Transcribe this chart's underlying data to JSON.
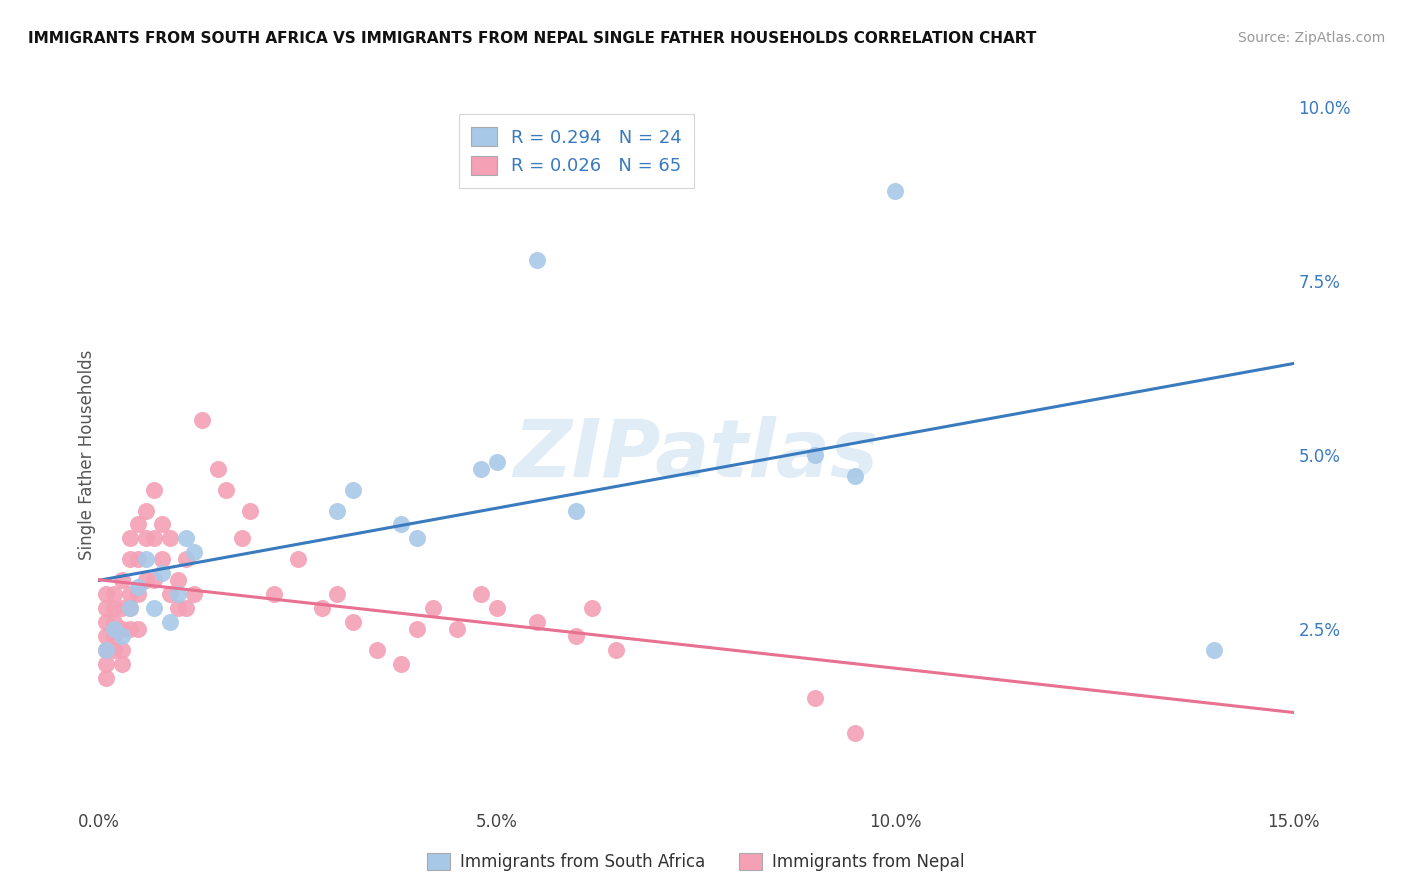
{
  "title": "IMMIGRANTS FROM SOUTH AFRICA VS IMMIGRANTS FROM NEPAL SINGLE FATHER HOUSEHOLDS CORRELATION CHART",
  "source": "Source: ZipAtlas.com",
  "ylabel": "Single Father Households",
  "xlim": [
    0,
    0.15
  ],
  "ylim": [
    0,
    0.1
  ],
  "legend_r1": "R = 0.294   N = 24",
  "legend_r2": "R = 0.026   N = 65",
  "blue_color": "#a8c8e8",
  "pink_color": "#f4a0b5",
  "blue_line_color": "#3a7abf",
  "pink_line_color": "#e87090",
  "south_africa_x": [
    0.001,
    0.002,
    0.003,
    0.004,
    0.005,
    0.006,
    0.007,
    0.008,
    0.009,
    0.01,
    0.011,
    0.012,
    0.03,
    0.032,
    0.038,
    0.04,
    0.05,
    0.055,
    0.09,
    0.095,
    0.1,
    0.14,
    0.048,
    0.06
  ],
  "south_africa_y": [
    0.022,
    0.025,
    0.024,
    0.028,
    0.031,
    0.035,
    0.028,
    0.033,
    0.026,
    0.03,
    0.038,
    0.036,
    0.042,
    0.045,
    0.04,
    0.038,
    0.049,
    0.078,
    0.05,
    0.047,
    0.088,
    0.022,
    0.048,
    0.042
  ],
  "nepal_x": [
    0.001,
    0.001,
    0.001,
    0.001,
    0.001,
    0.001,
    0.001,
    0.002,
    0.002,
    0.002,
    0.002,
    0.002,
    0.002,
    0.003,
    0.003,
    0.003,
    0.003,
    0.003,
    0.004,
    0.004,
    0.004,
    0.004,
    0.004,
    0.005,
    0.005,
    0.005,
    0.005,
    0.006,
    0.006,
    0.006,
    0.007,
    0.007,
    0.007,
    0.008,
    0.008,
    0.009,
    0.009,
    0.01,
    0.01,
    0.011,
    0.011,
    0.012,
    0.013,
    0.015,
    0.016,
    0.018,
    0.019,
    0.022,
    0.025,
    0.028,
    0.03,
    0.032,
    0.035,
    0.038,
    0.04,
    0.042,
    0.045,
    0.048,
    0.05,
    0.055,
    0.06,
    0.062,
    0.065,
    0.09,
    0.095
  ],
  "nepal_y": [
    0.024,
    0.022,
    0.026,
    0.028,
    0.03,
    0.02,
    0.018,
    0.025,
    0.028,
    0.03,
    0.022,
    0.024,
    0.026,
    0.032,
    0.028,
    0.025,
    0.022,
    0.02,
    0.035,
    0.038,
    0.03,
    0.028,
    0.025,
    0.04,
    0.035,
    0.03,
    0.025,
    0.042,
    0.038,
    0.032,
    0.045,
    0.038,
    0.032,
    0.04,
    0.035,
    0.038,
    0.03,
    0.032,
    0.028,
    0.035,
    0.028,
    0.03,
    0.055,
    0.048,
    0.045,
    0.038,
    0.042,
    0.03,
    0.035,
    0.028,
    0.03,
    0.026,
    0.022,
    0.02,
    0.025,
    0.028,
    0.025,
    0.03,
    0.028,
    0.026,
    0.024,
    0.028,
    0.022,
    0.015,
    0.01
  ],
  "watermark": "ZIPatlas",
  "bg_color": "#ffffff",
  "grid_color": "#d0d0d0"
}
